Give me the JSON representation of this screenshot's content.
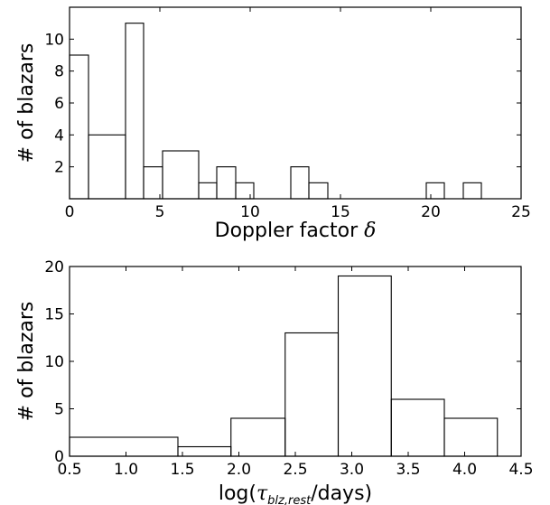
{
  "chart_data": [
    {
      "type": "histogram",
      "xlabel": "Doppler factor δ",
      "xlabel_parts": {
        "text": "Doppler factor ",
        "symbol": "δ"
      },
      "ylabel": "# of blazars",
      "xlim": [
        0,
        25
      ],
      "ylim": [
        0,
        12
      ],
      "xticks": [
        0,
        5,
        10,
        15,
        20,
        25
      ],
      "yticks": [
        2,
        4,
        6,
        8,
        10
      ],
      "bins": [
        {
          "x0": 0.0,
          "x1": 1.05,
          "count": 9
        },
        {
          "x0": 1.05,
          "x1": 3.1,
          "count": 4
        },
        {
          "x0": 3.1,
          "x1": 4.1,
          "count": 11
        },
        {
          "x0": 4.1,
          "x1": 5.15,
          "count": 2
        },
        {
          "x0": 5.15,
          "x1": 7.15,
          "count": 3
        },
        {
          "x0": 7.15,
          "x1": 8.15,
          "count": 1
        },
        {
          "x0": 8.15,
          "x1": 9.2,
          "count": 2
        },
        {
          "x0": 9.2,
          "x1": 10.2,
          "count": 1
        },
        {
          "x0": 10.2,
          "x1": 12.25,
          "count": 0
        },
        {
          "x0": 12.25,
          "x1": 13.25,
          "count": 2
        },
        {
          "x0": 13.25,
          "x1": 14.3,
          "count": 1
        },
        {
          "x0": 14.3,
          "x1": 19.75,
          "count": 0
        },
        {
          "x0": 19.75,
          "x1": 20.75,
          "count": 1
        },
        {
          "x0": 20.75,
          "x1": 21.8,
          "count": 0
        },
        {
          "x0": 21.8,
          "x1": 22.8,
          "count": 1
        }
      ]
    },
    {
      "type": "histogram",
      "xlabel": "log(τblz,rest/days)",
      "xlabel_parts": {
        "pre": "log(",
        "symbol": "τ",
        "subscript": "blz,rest",
        "post": "/days)"
      },
      "ylabel": "# of blazars",
      "xlim": [
        0.5,
        4.5
      ],
      "ylim": [
        0,
        20
      ],
      "xticks": [
        "0.5",
        "1.0",
        "1.5",
        "2.0",
        "2.5",
        "3.0",
        "3.5",
        "4.0",
        "4.5"
      ],
      "yticks": [
        0,
        5,
        10,
        15,
        20
      ],
      "bins": [
        {
          "x0": 0.5,
          "x1": 1.46,
          "count": 2
        },
        {
          "x0": 1.46,
          "x1": 1.93,
          "count": 1
        },
        {
          "x0": 1.93,
          "x1": 2.41,
          "count": 4
        },
        {
          "x0": 2.41,
          "x1": 2.88,
          "count": 13
        },
        {
          "x0": 2.88,
          "x1": 3.35,
          "count": 19
        },
        {
          "x0": 3.35,
          "x1": 3.82,
          "count": 6
        },
        {
          "x0": 3.82,
          "x1": 4.29,
          "count": 4
        }
      ]
    }
  ]
}
